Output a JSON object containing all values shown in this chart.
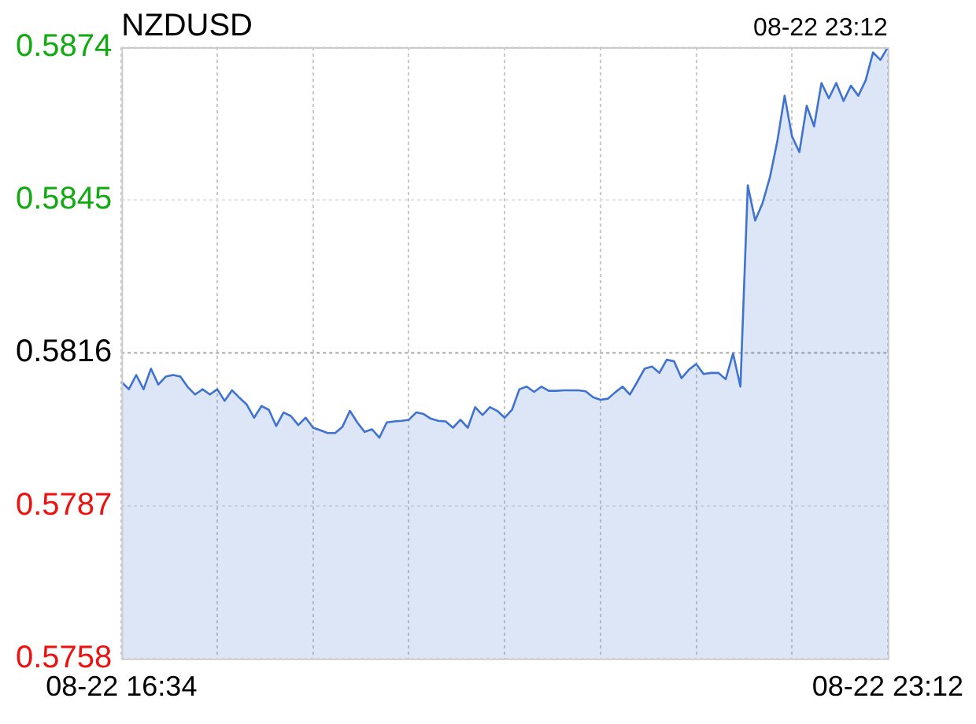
{
  "chart_data": {
    "type": "area",
    "title": "NZDUSD",
    "annotations": [
      "08-22 23:12"
    ],
    "categories": [
      "08-22 16:34",
      null,
      null,
      null,
      null,
      null,
      null,
      null,
      null,
      null,
      null,
      null,
      null,
      null,
      null,
      null,
      null,
      null,
      null,
      null,
      null,
      null,
      null,
      null,
      null,
      null,
      null,
      null,
      null,
      null,
      null,
      null,
      null,
      null,
      null,
      null,
      null,
      null,
      null,
      null,
      null,
      null,
      null,
      null,
      null,
      null,
      null,
      null,
      null,
      null,
      null,
      null,
      null,
      null,
      null,
      null,
      null,
      null,
      null,
      null,
      null,
      null,
      null,
      null,
      null,
      null,
      null,
      null,
      null,
      null,
      null,
      null,
      null,
      null,
      null,
      null,
      null,
      null,
      null,
      null,
      null,
      null,
      null,
      null,
      null,
      null,
      null,
      null,
      null,
      null,
      null,
      null,
      null,
      null,
      null,
      null,
      null,
      null,
      null,
      null,
      null,
      null,
      null,
      null,
      "08-22 23:12"
    ],
    "series": [
      {
        "color": "#3f72d1",
        "values": [
          0.58105,
          0.58091,
          0.58118,
          0.58091,
          0.5813,
          0.581,
          0.58115,
          0.58118,
          0.58115,
          0.58095,
          0.58081,
          0.58091,
          0.58081,
          0.58091,
          0.58069,
          0.58089,
          0.58075,
          0.58062,
          0.58037,
          0.58059,
          0.58052,
          0.58021,
          0.58047,
          0.5804,
          0.58023,
          0.58037,
          0.58018,
          0.58013,
          0.58008,
          0.58008,
          0.5802,
          0.5805,
          0.58028,
          0.5801,
          0.58015,
          0.57999,
          0.58028,
          0.5803,
          0.58031,
          0.58033,
          0.58047,
          0.58044,
          0.58035,
          0.58031,
          0.5803,
          0.58018,
          0.58033,
          0.58018,
          0.58057,
          0.58042,
          0.58057,
          0.5805,
          0.58037,
          0.58052,
          0.58091,
          0.58096,
          0.58086,
          0.58096,
          0.58088,
          0.58088,
          0.58089,
          0.58089,
          0.58089,
          0.58087,
          0.58076,
          0.58071,
          0.58073,
          0.58085,
          0.58096,
          0.58081,
          0.58105,
          0.5813,
          0.58134,
          0.58122,
          0.58147,
          0.58144,
          0.58112,
          0.58128,
          0.58139,
          0.5812,
          0.58122,
          0.58122,
          0.5811,
          0.58159,
          0.58096,
          0.58478,
          0.58411,
          0.58444,
          0.58493,
          0.58561,
          0.58648,
          0.58571,
          0.58541,
          0.58629,
          0.5859,
          0.58672,
          0.58643,
          0.58672,
          0.58638,
          0.58667,
          0.58648,
          0.58677,
          0.5873,
          0.58716,
          0.5874
        ]
      }
    ],
    "ylim": [
      0.5758,
      0.5874
    ],
    "yticks": [
      0.5758,
      0.5787,
      0.5816,
      0.5845,
      0.5874
    ],
    "ref_lines": [
      {
        "axis": "y",
        "value": 0.5816,
        "color": "#aaaaaa",
        "line_style": "dotted"
      }
    ],
    "grid": true,
    "legend": false,
    "marker": "none",
    "line_style": "solid"
  }
}
